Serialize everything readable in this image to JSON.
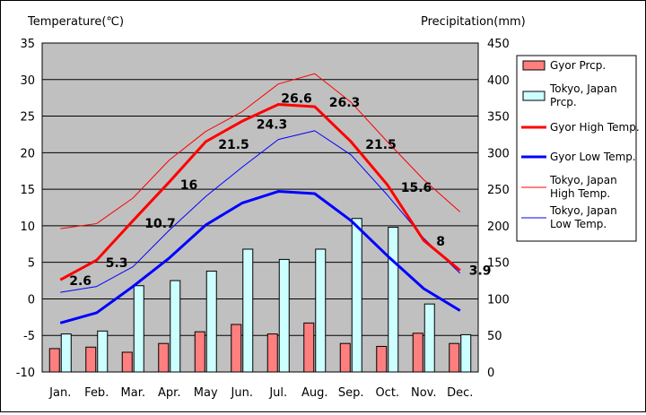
{
  "window": {
    "background": "#ffffff"
  },
  "chart_data": {
    "type": "bar",
    "left_axis_title": "Temperature(℃)",
    "right_axis_title": "Precipitation(mm)",
    "categories": [
      "Jan.",
      "Feb.",
      "Mar.",
      "Apr.",
      "May",
      "Jun.",
      "Jul.",
      "Aug.",
      "Sep.",
      "Oct.",
      "Nov.",
      "Dec."
    ],
    "ylim_left": [
      -10,
      35
    ],
    "yticks_left": [
      35,
      30,
      25,
      20,
      15,
      10,
      5,
      0,
      -5,
      -10
    ],
    "ylim_right": [
      0,
      450
    ],
    "yticks_right": [
      450,
      400,
      350,
      300,
      250,
      200,
      150,
      100,
      50,
      0
    ],
    "grid": true,
    "plot_background": "#c0c0c0",
    "legend_position": "right",
    "bar_series": [
      {
        "name": "Gyor Prcp.",
        "axis": "right",
        "color": "#ff7f7f",
        "values": [
          32,
          34,
          27,
          39,
          55,
          65,
          52,
          67,
          39,
          35,
          53,
          39
        ]
      },
      {
        "name": "Tokyo, Japan Prcp.",
        "axis": "right",
        "color": "#ccffff",
        "values": [
          52,
          56,
          118,
          125,
          138,
          168,
          154,
          168,
          210,
          198,
          93,
          51
        ]
      }
    ],
    "line_series": [
      {
        "name": "Gyor High Temp.",
        "axis": "left",
        "color": "#ff0000",
        "width": 3,
        "values": [
          2.6,
          5.3,
          10.7,
          16,
          21.5,
          24.3,
          26.6,
          26.3,
          21.5,
          15.6,
          8,
          3.9
        ],
        "labels": [
          "2.6",
          "5.3",
          "10.7",
          "16",
          "21.5",
          "24.3",
          "26.6",
          "26.3",
          "21.5",
          "15.6",
          "8",
          "3.9"
        ]
      },
      {
        "name": "Gyor Low Temp.",
        "axis": "left",
        "color": "#0000ff",
        "width": 3,
        "values": [
          -3.3,
          -1.9,
          1.7,
          5.6,
          10.1,
          13.1,
          14.7,
          14.4,
          10.7,
          5.9,
          1.4,
          -1.6
        ]
      },
      {
        "name": "Tokyo, Japan High Temp.",
        "axis": "left",
        "color": "#ff0000",
        "width": 1,
        "values": [
          9.6,
          10.3,
          13.8,
          19,
          22.9,
          25.6,
          29.4,
          30.8,
          26.9,
          21.5,
          16.3,
          11.9
        ]
      },
      {
        "name": "Tokyo, Japan Low Temp.",
        "axis": "left",
        "color": "#0000ff",
        "width": 1,
        "values": [
          0.9,
          1.7,
          4.4,
          9.4,
          14,
          18,
          21.8,
          23,
          19.7,
          14.2,
          8.3,
          3.5
        ]
      }
    ],
    "legend": [
      {
        "label": "Gyor Prcp.",
        "kind": "swatch",
        "color": "#ff7f7f"
      },
      {
        "label": "Tokyo, Japan Prcp.",
        "kind": "swatch",
        "color": "#ccffff"
      },
      {
        "label": "Gyor High Temp.",
        "kind": "line",
        "color": "#ff0000",
        "width": 3
      },
      {
        "label": "Gyor Low Temp.",
        "kind": "line",
        "color": "#0000ff",
        "width": 3
      },
      {
        "label": "Tokyo, Japan High Temp.",
        "kind": "line",
        "color": "#ff0000",
        "width": 1
      },
      {
        "label": "Tokyo, Japan Low Temp.",
        "kind": "line",
        "color": "#0000ff",
        "width": 1
      }
    ]
  }
}
